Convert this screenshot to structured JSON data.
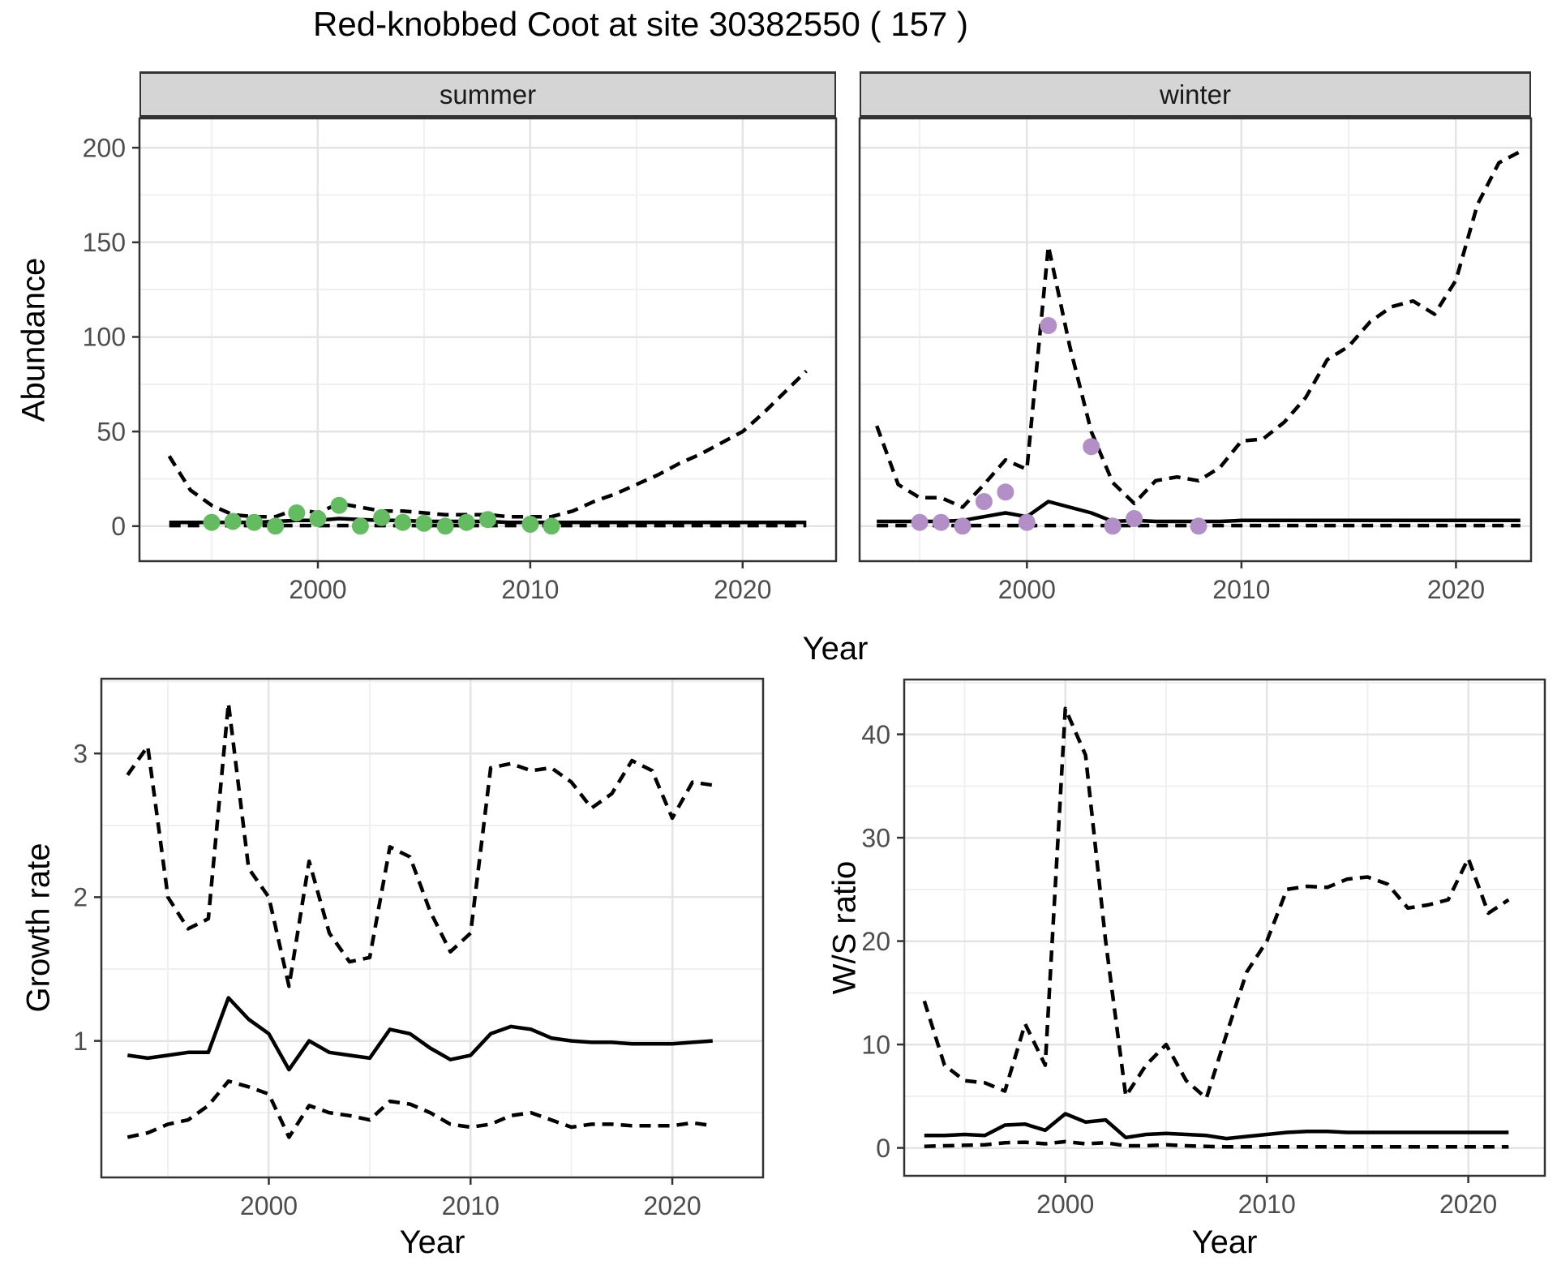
{
  "title": "Red-knobbed Coot at site 30382550 ( 157 )",
  "facets": [
    "summer",
    "winter"
  ],
  "colors": {
    "summer_point": "#63bc60",
    "winter_point": "#b28fc6",
    "line": "#000000",
    "grid_major": "#e4e4e4",
    "grid_minor": "#f0f0f0",
    "strip_bg": "#d5d5d5",
    "panel_border": "#333333",
    "tick_label": "#4d4d4d"
  },
  "chart_data": [
    {
      "id": "abundance-summer",
      "type": "line",
      "facet": "summer",
      "xlabel": "Year",
      "ylabel": "Abundance",
      "xlim": [
        1991.6,
        2024.4
      ],
      "ylim": [
        -18.5,
        215.5
      ],
      "xticks": [
        2000,
        2010,
        2020
      ],
      "xminor": [
        1995,
        2005,
        2015
      ],
      "yticks": [
        0,
        50,
        100,
        150,
        200
      ],
      "yminor": [
        25,
        75,
        125,
        175
      ],
      "grid": true,
      "years": [
        1993,
        1994,
        1995,
        1996,
        1997,
        1998,
        1999,
        2000,
        2001,
        2002,
        2003,
        2004,
        2005,
        2006,
        2007,
        2008,
        2009,
        2010,
        2011,
        2012,
        2013,
        2014,
        2015,
        2016,
        2017,
        2018,
        2019,
        2020,
        2021,
        2022,
        2023
      ],
      "series": [
        {
          "name": "upper_ci",
          "style": "dashed",
          "values": [
            37,
            19,
            11,
            6,
            5,
            5,
            9,
            7,
            12,
            10,
            8,
            8,
            7,
            6,
            6,
            6,
            5,
            5,
            5,
            8,
            13,
            17,
            22,
            27,
            33,
            38,
            44,
            50,
            60,
            71,
            82
          ]
        },
        {
          "name": "fit",
          "style": "solid",
          "values": [
            2,
            2,
            2,
            2,
            2,
            2.5,
            3,
            3,
            4,
            3.5,
            3,
            3,
            2.5,
            2.5,
            2.5,
            2.5,
            2,
            2,
            2,
            2,
            2,
            2,
            2,
            2,
            2,
            2,
            2,
            2,
            2,
            2,
            2
          ]
        },
        {
          "name": "lower_ci",
          "style": "dashed",
          "values": [
            0.3,
            0.3,
            0.3,
            0.3,
            0.3,
            0.3,
            0.3,
            0.3,
            0.3,
            0.3,
            0.3,
            0.3,
            0.3,
            0.3,
            0.3,
            0.3,
            0.3,
            0.3,
            0.3,
            0.3,
            0.3,
            0.3,
            0.3,
            0.3,
            0.3,
            0.3,
            0.3,
            0.3,
            0.3,
            0.3,
            0.3
          ]
        }
      ],
      "points": {
        "name": "observed_counts",
        "color_key": "summer_point",
        "years": [
          1995,
          1996,
          1997,
          1998,
          1999,
          2000,
          2001,
          2002,
          2003,
          2004,
          2005,
          2006,
          2007,
          2008,
          2010,
          2011
        ],
        "values": [
          2,
          2.5,
          2,
          0,
          7,
          4,
          11,
          0,
          4.5,
          2,
          1.5,
          0,
          2,
          3.5,
          1,
          0
        ]
      }
    },
    {
      "id": "abundance-winter",
      "type": "line",
      "facet": "winter",
      "xlabel": "Year",
      "ylabel": "Abundance",
      "xlim": [
        1992.2,
        2023.5
      ],
      "ylim": [
        -18.5,
        215.5
      ],
      "xticks": [
        2000,
        2010,
        2020
      ],
      "xminor": [
        1995,
        2005,
        2015
      ],
      "yticks": [
        0,
        50,
        100,
        150,
        200
      ],
      "yminor": [
        25,
        75,
        125,
        175
      ],
      "grid": true,
      "years": [
        1993,
        1994,
        1995,
        1996,
        1997,
        1998,
        1999,
        2000,
        2001,
        2002,
        2003,
        2004,
        2005,
        2006,
        2007,
        2008,
        2009,
        2010,
        2011,
        2012,
        2013,
        2014,
        2015,
        2016,
        2017,
        2018,
        2019,
        2020,
        2021,
        2022,
        2023
      ],
      "series": [
        {
          "name": "upper_ci",
          "style": "dashed",
          "values": [
            53,
            22,
            15,
            15,
            10,
            22,
            35,
            30,
            148,
            95,
            50,
            23,
            12,
            24,
            26,
            24,
            31,
            45,
            46,
            55,
            68,
            88,
            95,
            108,
            116,
            119,
            112,
            130,
            170,
            192,
            198
          ]
        },
        {
          "name": "fit",
          "style": "solid",
          "values": [
            2.5,
            2.5,
            2.5,
            2.5,
            3,
            5,
            7,
            5,
            13,
            10,
            7,
            2.5,
            3,
            2.5,
            2.5,
            2.5,
            2.5,
            3,
            3,
            3,
            3,
            3,
            3,
            3,
            3,
            3,
            3,
            3,
            3,
            3,
            3
          ]
        },
        {
          "name": "lower_ci",
          "style": "dashed",
          "values": [
            0.3,
            0.3,
            0.3,
            0.3,
            0.3,
            0.3,
            0.3,
            0.3,
            0.3,
            0.3,
            0.3,
            0.3,
            0.3,
            0.3,
            0.3,
            0.3,
            0.3,
            0.3,
            0.3,
            0.3,
            0.3,
            0.3,
            0.3,
            0.3,
            0.3,
            0.3,
            0.3,
            0.3,
            0.3,
            0.3,
            0.3
          ]
        }
      ],
      "points": {
        "name": "observed_counts",
        "color_key": "winter_point",
        "years": [
          1995,
          1996,
          1997,
          1998,
          1999,
          2000,
          2001,
          2003,
          2004,
          2005,
          2008
        ],
        "values": [
          2,
          2,
          0,
          13,
          18,
          2,
          106,
          42,
          0,
          4,
          0
        ]
      }
    },
    {
      "id": "growth-rate",
      "type": "line",
      "facet": null,
      "xlabel": "Year",
      "ylabel": "Growth rate",
      "xlim": [
        1991.7,
        2024.5
      ],
      "ylim": [
        0.05,
        3.52
      ],
      "xticks": [
        2000,
        2010,
        2020
      ],
      "xminor": [
        1995,
        2005,
        2015
      ],
      "yticks": [
        1,
        2,
        3
      ],
      "yminor": [
        0.5,
        1.5,
        2.5,
        3.5
      ],
      "grid": true,
      "years": [
        1993,
        1994,
        1995,
        1996,
        1997,
        1998,
        1999,
        2000,
        2001,
        2002,
        2003,
        2004,
        2005,
        2006,
        2007,
        2008,
        2009,
        2010,
        2011,
        2012,
        2013,
        2014,
        2015,
        2016,
        2017,
        2018,
        2019,
        2020,
        2021,
        2022
      ],
      "series": [
        {
          "name": "upper_ci",
          "style": "dashed",
          "values": [
            2.85,
            3.05,
            2.0,
            1.78,
            1.85,
            3.35,
            2.2,
            2.0,
            1.38,
            2.25,
            1.75,
            1.55,
            1.58,
            2.35,
            2.28,
            1.9,
            1.62,
            1.75,
            2.9,
            2.93,
            2.88,
            2.9,
            2.8,
            2.62,
            2.72,
            2.95,
            2.88,
            2.55,
            2.8,
            2.78
          ]
        },
        {
          "name": "fit",
          "style": "solid",
          "values": [
            0.9,
            0.88,
            0.9,
            0.92,
            0.92,
            1.3,
            1.15,
            1.05,
            0.8,
            1.0,
            0.92,
            0.9,
            0.88,
            1.08,
            1.05,
            0.95,
            0.87,
            0.9,
            1.05,
            1.1,
            1.08,
            1.02,
            1.0,
            0.99,
            0.99,
            0.98,
            0.98,
            0.98,
            0.99,
            1.0
          ]
        },
        {
          "name": "lower_ci",
          "style": "dashed",
          "values": [
            0.33,
            0.36,
            0.42,
            0.45,
            0.55,
            0.72,
            0.68,
            0.63,
            0.33,
            0.55,
            0.5,
            0.48,
            0.45,
            0.58,
            0.56,
            0.5,
            0.42,
            0.4,
            0.42,
            0.48,
            0.5,
            0.45,
            0.4,
            0.42,
            0.42,
            0.41,
            0.41,
            0.41,
            0.43,
            0.41
          ]
        }
      ],
      "points": null
    },
    {
      "id": "ws-ratio",
      "type": "line",
      "facet": null,
      "xlabel": "Year",
      "ylabel": "W/S ratio",
      "xlim": [
        1992.0,
        2023.8
      ],
      "ylim": [
        -2.7,
        45.3
      ],
      "xticks": [
        2000,
        2010,
        2020
      ],
      "xminor": [
        1995,
        2005,
        2015
      ],
      "yticks": [
        0,
        10,
        20,
        30,
        40
      ],
      "yminor": [
        5,
        15,
        25,
        35,
        45
      ],
      "grid": true,
      "years": [
        1993,
        1994,
        1995,
        1996,
        1997,
        1998,
        1999,
        2000,
        2001,
        2002,
        2003,
        2004,
        2005,
        2006,
        2007,
        2008,
        2009,
        2010,
        2011,
        2012,
        2013,
        2014,
        2015,
        2016,
        2017,
        2018,
        2019,
        2020,
        2021,
        2022
      ],
      "series": [
        {
          "name": "upper_ci",
          "style": "dashed",
          "values": [
            14.2,
            8,
            6.5,
            6.3,
            5.5,
            12,
            8,
            42.5,
            38,
            20,
            5,
            8,
            10,
            6.5,
            4.8,
            11,
            17,
            20,
            25,
            25.3,
            25.2,
            26,
            26.2,
            25.5,
            23.2,
            23.5,
            24,
            28,
            22.7,
            24
          ]
        },
        {
          "name": "fit",
          "style": "solid",
          "values": [
            1.2,
            1.2,
            1.3,
            1.2,
            2.2,
            2.3,
            1.7,
            3.3,
            2.5,
            2.7,
            1.0,
            1.3,
            1.4,
            1.3,
            1.2,
            0.9,
            1.1,
            1.3,
            1.5,
            1.6,
            1.6,
            1.5,
            1.5,
            1.5,
            1.5,
            1.5,
            1.5,
            1.5,
            1.5,
            1.5
          ]
        },
        {
          "name": "lower_ci",
          "style": "dashed",
          "values": [
            0.15,
            0.2,
            0.25,
            0.3,
            0.5,
            0.55,
            0.4,
            0.6,
            0.4,
            0.5,
            0.2,
            0.2,
            0.3,
            0.2,
            0.15,
            0.1,
            0.1,
            0.1,
            0.1,
            0.1,
            0.1,
            0.1,
            0.1,
            0.1,
            0.1,
            0.1,
            0.1,
            0.1,
            0.1,
            0.1
          ]
        }
      ],
      "points": null
    }
  ]
}
